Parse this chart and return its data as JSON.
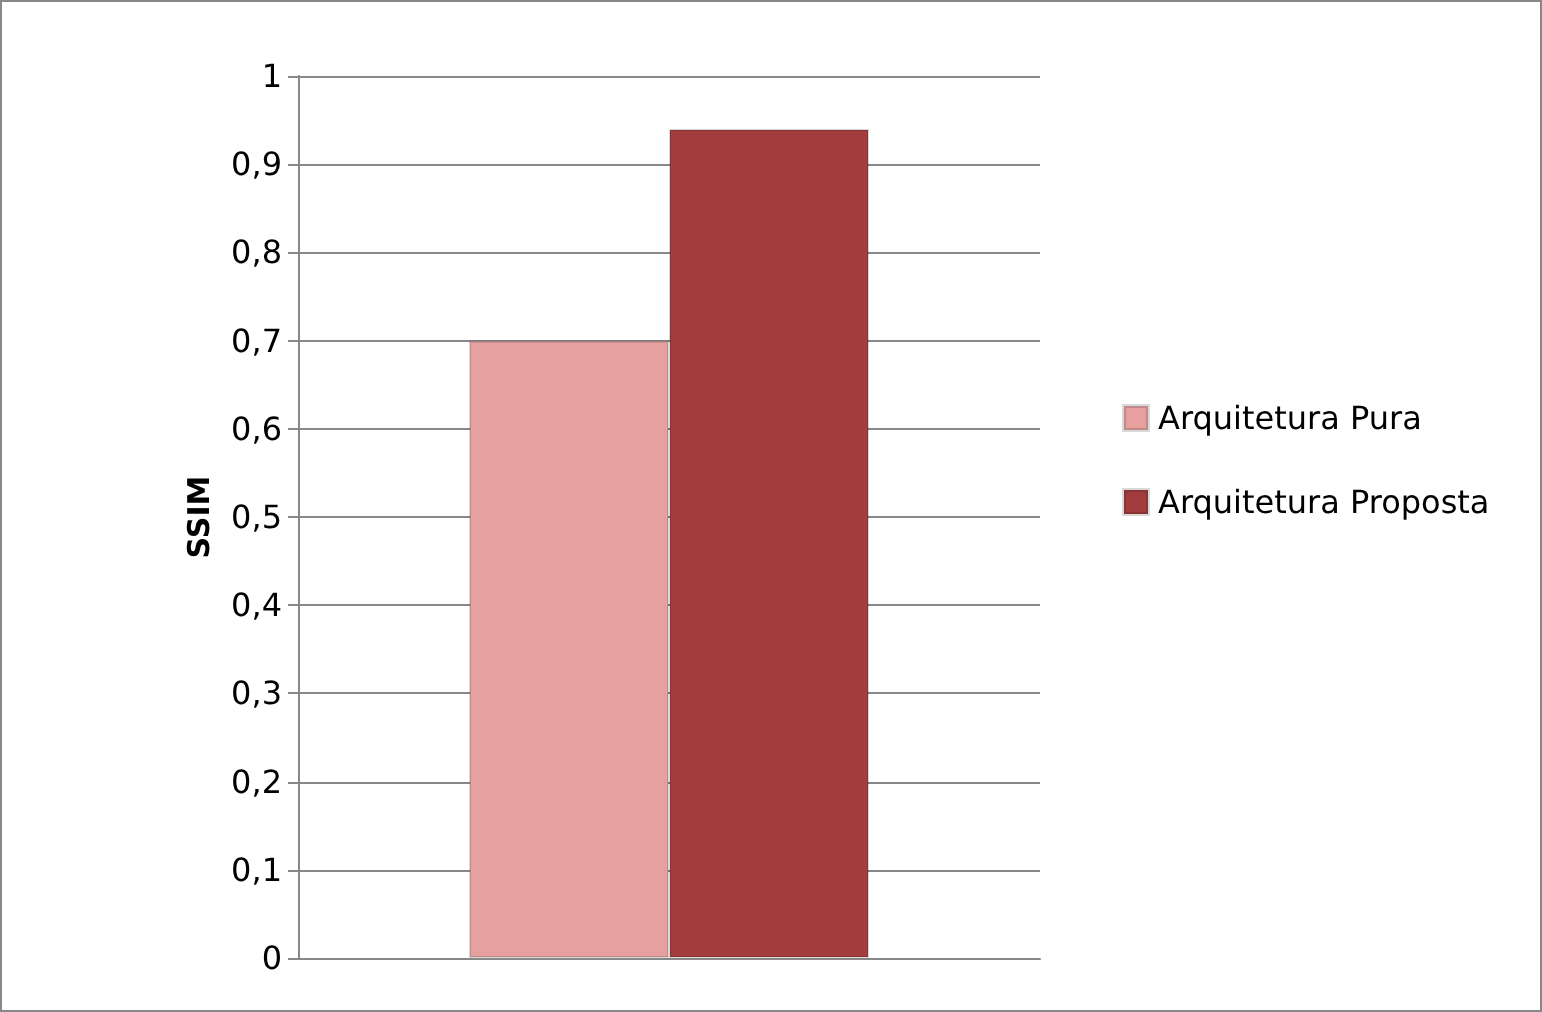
{
  "chart_data": {
    "type": "bar",
    "ylabel": "SSIM",
    "categories": [
      null
    ],
    "series": [
      {
        "name": "Arquitetura Pura",
        "color": "#e6a0a0",
        "values": [
          0.7
        ]
      },
      {
        "name": "Arquitetura Proposta",
        "color": "#a33c3c",
        "values": [
          0.94
        ]
      }
    ],
    "ylim": [
      0,
      1
    ],
    "yticks": [
      0,
      {
        "value": 0.1,
        "label": "0,1"
      },
      {
        "value": 0.2,
        "label": "0,2"
      },
      {
        "value": 0.3,
        "label": "0,3"
      },
      {
        "value": 0.4,
        "label": "0,4"
      },
      {
        "value": 0.5,
        "label": "0,5"
      },
      {
        "value": 0.6,
        "label": "0,6"
      },
      {
        "value": 0.7,
        "label": "0,7"
      },
      {
        "value": 0.8,
        "label": "0,8"
      },
      {
        "value": 0.9,
        "label": "0,9"
      },
      1
    ],
    "grid": true,
    "legend": "right"
  }
}
